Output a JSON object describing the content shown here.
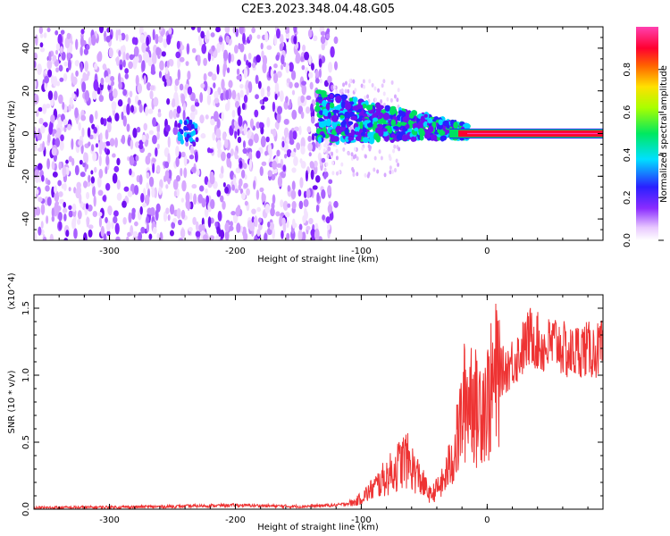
{
  "figure_title": "C2E3.2023.348.04.48.G05",
  "colorbar": {
    "label": "Normalized spectral amplitude",
    "ticks": [
      0.0,
      0.2,
      0.4,
      0.6,
      0.8
    ],
    "tick_labels": [
      "0.0",
      "0.2",
      "0.4",
      "0.6",
      "0.8"
    ],
    "range": [
      0,
      1
    ]
  },
  "chart_data": [
    {
      "type": "heatmap",
      "xlabel": "Height of straight line (km)",
      "ylabel": "Frequency (Hz)",
      "xlim": [
        -360,
        92
      ],
      "ylim": [
        -50,
        50
      ],
      "xticks": [
        -300,
        -200,
        -100,
        0
      ],
      "xtick_labels": [
        "-300",
        "-200",
        "-100",
        "0"
      ],
      "yticks": [
        -40,
        -20,
        0,
        20,
        40
      ],
      "ytick_labels": [
        "-40",
        "-20",
        "0",
        "20",
        "40"
      ],
      "colormap": "rainbow (white-purple-blue-cyan-green-yellow-red-magenta)",
      "features": {
        "noise_x_range": [
          -360,
          -120
        ],
        "trace_x_range": [
          -135,
          92
        ],
        "trace_frequency_at_start_hz": 8,
        "trace_frequency_at_end_hz": 0,
        "weak_cluster_x_range": [
          -245,
          -230
        ]
      }
    },
    {
      "type": "line",
      "xlabel": "Height of straight line (km)",
      "ylabel": "SNR (10 * v/v)",
      "y_scale_note": "(x10^4)",
      "xlim": [
        -360,
        92
      ],
      "ylim": [
        0,
        1.6
      ],
      "xticks": [
        -300,
        -200,
        -100,
        0
      ],
      "xtick_labels": [
        "-300",
        "-200",
        "-100",
        "0"
      ],
      "yticks": [
        0.0,
        0.5,
        1.0,
        1.5
      ],
      "ytick_labels": [
        "0.0",
        "0.5",
        "1.0",
        "1.5"
      ],
      "line_color": "#ee3333",
      "x": [
        -360,
        -300,
        -250,
        -200,
        -150,
        -120,
        -105,
        -95,
        -85,
        -75,
        -65,
        -55,
        -45,
        -35,
        -25,
        -18,
        -12,
        -8,
        -4,
        0,
        8,
        15,
        25,
        35,
        45,
        55,
        65,
        75,
        85,
        92
      ],
      "y": [
        0.01,
        0.015,
        0.02,
        0.03,
        0.02,
        0.03,
        0.05,
        0.12,
        0.2,
        0.28,
        0.38,
        0.25,
        0.1,
        0.2,
        0.45,
        0.8,
        0.9,
        0.7,
        0.85,
        0.8,
        1.0,
        1.05,
        1.15,
        1.3,
        1.2,
        1.25,
        1.15,
        1.2,
        1.18,
        1.2
      ]
    }
  ]
}
